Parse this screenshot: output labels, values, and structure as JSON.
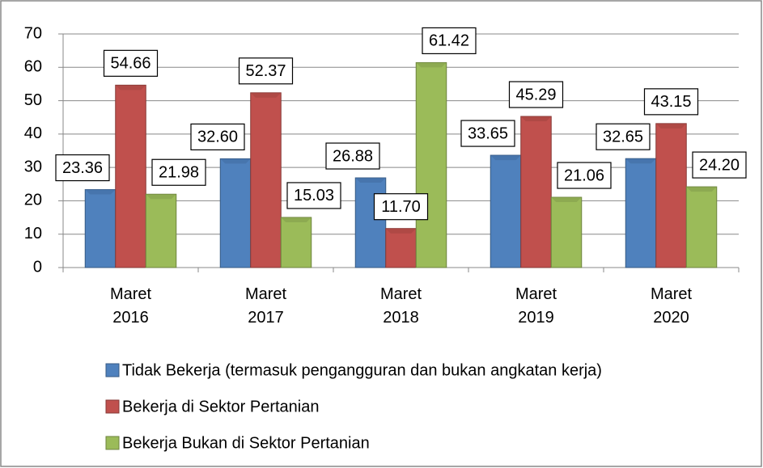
{
  "chart_data": {
    "type": "bar",
    "categories": [
      "Maret 2016",
      "Maret 2017",
      "Maret 2018",
      "Maret 2019",
      "Maret 2020"
    ],
    "series": [
      {
        "name": "Tidak Bekerja (termasuk pengangguran dan bukan angkatan kerja)",
        "color": "#4f81bd",
        "values": [
          23.36,
          32.6,
          26.88,
          33.65,
          32.65
        ],
        "value_labels": [
          "23.36",
          "32.60",
          "26.88",
          "33.65",
          "32.65"
        ]
      },
      {
        "name": "Bekerja di Sektor Pertanian",
        "color": "#c0504d",
        "values": [
          54.66,
          52.37,
          11.7,
          45.29,
          43.15
        ],
        "value_labels": [
          "54.66",
          "52.37",
          "11.70",
          "45.29",
          "43.15"
        ]
      },
      {
        "name": "Bekerja Bukan di Sektor Pertanian",
        "color": "#9bbb59",
        "values": [
          21.98,
          15.03,
          61.42,
          21.06,
          24.2
        ],
        "value_labels": [
          "21.98",
          "15.03",
          "61.42",
          "21.06",
          "24.20"
        ]
      }
    ],
    "ylim": [
      0,
      70
    ],
    "yticks": [
      0,
      10,
      20,
      30,
      40,
      50,
      60,
      70
    ],
    "grid": true,
    "legend": "bottom"
  }
}
